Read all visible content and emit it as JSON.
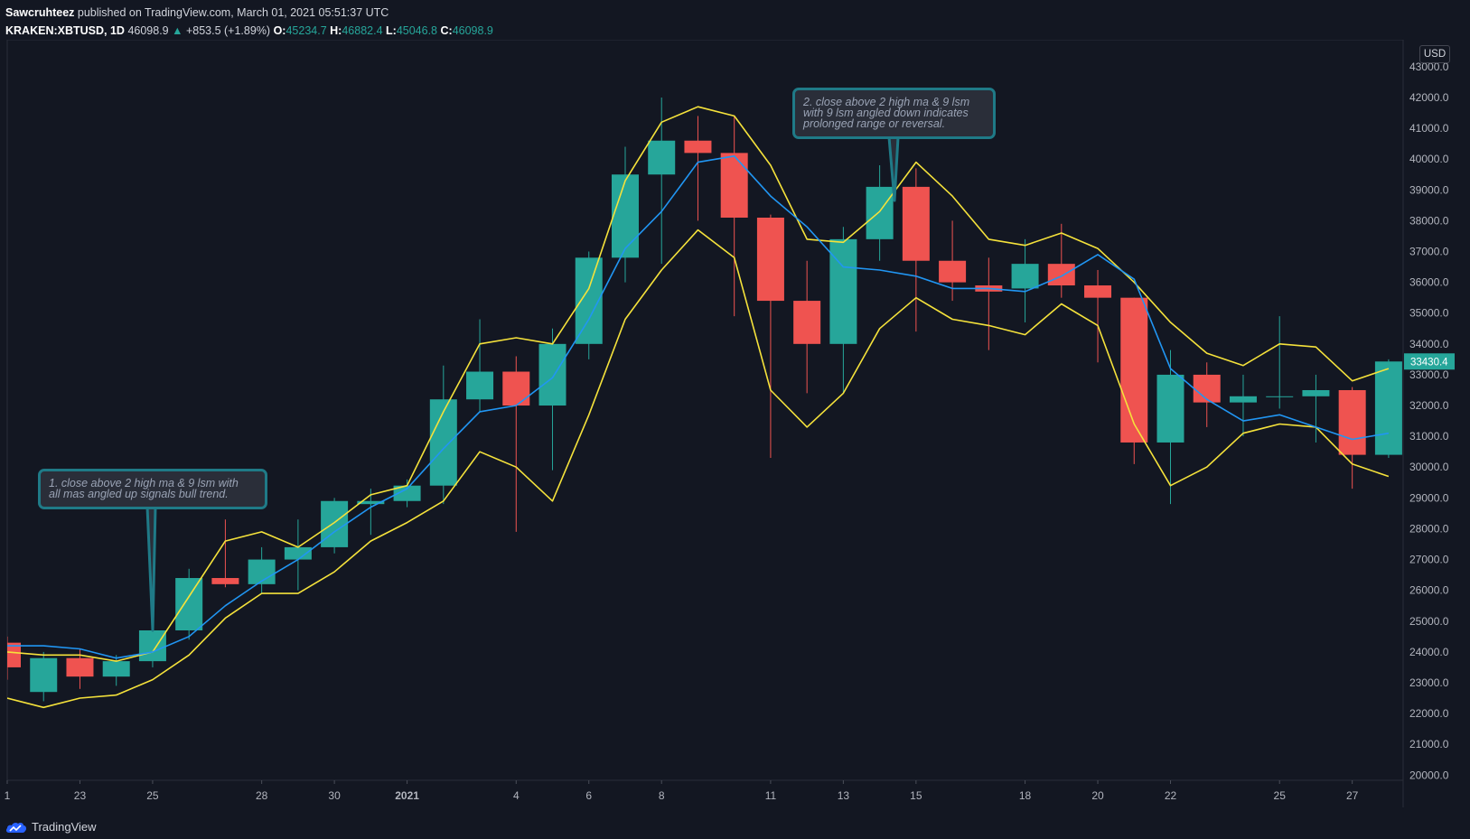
{
  "header": {
    "author": "Sawcruhteez",
    "published": " published on TradingView.com, March 01, 2021 05:51:37 UTC",
    "symbol": "KRAKEN:XBTUSD, 1D",
    "last": "46098.9",
    "change": "+853.5 (+1.89%)",
    "o_label": "O:",
    "o_value": "45234.7",
    "h_label": "H:",
    "h_value": "46882.4",
    "l_label": "L:",
    "l_value": "45046.8",
    "c_label": "C:",
    "c_value": "46098.9"
  },
  "axis": {
    "currency": "USD",
    "current_price_label": "33430.4"
  },
  "footer": {
    "brand": "TradingView",
    "logo_icon": "tradingview-cloud-icon"
  },
  "annotations": [
    {
      "text": "1. close above 2 high ma & 9 lsm with\nall mas angled up signals bull trend."
    },
    {
      "text": "2. close above 2 high ma & 9 lsm\nwith 9 lsm angled down indicates\nprolonged range or reversal."
    }
  ],
  "colors": {
    "bull": "#26a69a",
    "bear": "#ef5350",
    "ma_bands": "#f5e23b",
    "lsm": "#2196f3",
    "grid": "#1f2330"
  },
  "chart_data": {
    "type": "candlestick",
    "xlim": [
      0,
      38.4
    ],
    "ylim": [
      19950,
      43700
    ],
    "y_ticks": [
      20000,
      21000,
      22000,
      23000,
      24000,
      25000,
      26000,
      27000,
      28000,
      29000,
      30000,
      31000,
      32000,
      33000,
      34000,
      35000,
      36000,
      37000,
      38000,
      39000,
      40000,
      41000,
      42000,
      43000
    ],
    "y_tick_labels": [
      "20000.0",
      "21000.0",
      "22000.0",
      "23000.0",
      "24000.0",
      "25000.0",
      "26000.0",
      "27000.0",
      "28000.0",
      "29000.0",
      "30000.0",
      "31000.0",
      "32000.0",
      "33000.0",
      "34000.0",
      "35000.0",
      "36000.0",
      "37000.0",
      "38000.0",
      "39000.0",
      "40000.0",
      "41000.0",
      "42000.0",
      "43000.0"
    ],
    "x_ticks": [
      {
        "i": 0,
        "label": "1"
      },
      {
        "i": 2,
        "label": "23"
      },
      {
        "i": 4,
        "label": "25"
      },
      {
        "i": 7,
        "label": "28"
      },
      {
        "i": 9,
        "label": "30"
      },
      {
        "i": 11,
        "label": "2021"
      },
      {
        "i": 14,
        "label": "4"
      },
      {
        "i": 16,
        "label": "6"
      },
      {
        "i": 18,
        "label": "8"
      },
      {
        "i": 21,
        "label": "11"
      },
      {
        "i": 23,
        "label": "13"
      },
      {
        "i": 25,
        "label": "15"
      },
      {
        "i": 28,
        "label": "18"
      },
      {
        "i": 30,
        "label": "20"
      },
      {
        "i": 32,
        "label": "22"
      },
      {
        "i": 35,
        "label": "25"
      },
      {
        "i": 37,
        "label": "27"
      }
    ],
    "candles": [
      {
        "o": 24300,
        "h": 24500,
        "l": 23100,
        "c": 23500
      },
      {
        "o": 22700,
        "h": 24000,
        "l": 22400,
        "c": 23800
      },
      {
        "o": 23800,
        "h": 24100,
        "l": 22800,
        "c": 23200
      },
      {
        "o": 23200,
        "h": 23900,
        "l": 22900,
        "c": 23700
      },
      {
        "o": 23700,
        "h": 24800,
        "l": 23500,
        "c": 24700
      },
      {
        "o": 24700,
        "h": 26700,
        "l": 24400,
        "c": 26400
      },
      {
        "o": 26400,
        "h": 28300,
        "l": 26100,
        "c": 26200
      },
      {
        "o": 26200,
        "h": 27400,
        "l": 25900,
        "c": 27000
      },
      {
        "o": 27000,
        "h": 28300,
        "l": 26000,
        "c": 27400
      },
      {
        "o": 27400,
        "h": 29000,
        "l": 27200,
        "c": 28900
      },
      {
        "o": 28800,
        "h": 29300,
        "l": 27800,
        "c": 28900
      },
      {
        "o": 28900,
        "h": 29600,
        "l": 28700,
        "c": 29400
      },
      {
        "o": 29400,
        "h": 33300,
        "l": 28800,
        "c": 32200
      },
      {
        "o": 32200,
        "h": 34800,
        "l": 31800,
        "c": 33100
      },
      {
        "o": 33100,
        "h": 33600,
        "l": 27900,
        "c": 32000
      },
      {
        "o": 32000,
        "h": 34500,
        "l": 29900,
        "c": 34000
      },
      {
        "o": 34000,
        "h": 37000,
        "l": 33500,
        "c": 36800
      },
      {
        "o": 36800,
        "h": 40400,
        "l": 36000,
        "c": 39500
      },
      {
        "o": 39500,
        "h": 42000,
        "l": 36600,
        "c": 40600
      },
      {
        "o": 40600,
        "h": 41400,
        "l": 38000,
        "c": 40200
      },
      {
        "o": 40200,
        "h": 41400,
        "l": 34900,
        "c": 38100
      },
      {
        "o": 38100,
        "h": 38200,
        "l": 30300,
        "c": 35400
      },
      {
        "o": 35400,
        "h": 36700,
        "l": 32400,
        "c": 34000
      },
      {
        "o": 34000,
        "h": 37800,
        "l": 32400,
        "c": 37400
      },
      {
        "o": 37400,
        "h": 39800,
        "l": 36700,
        "c": 39100
      },
      {
        "o": 39100,
        "h": 39700,
        "l": 34400,
        "c": 36700
      },
      {
        "o": 36700,
        "h": 38000,
        "l": 35400,
        "c": 36000
      },
      {
        "o": 35900,
        "h": 36800,
        "l": 33800,
        "c": 35700
      },
      {
        "o": 35800,
        "h": 37400,
        "l": 34700,
        "c": 36600
      },
      {
        "o": 36600,
        "h": 37900,
        "l": 35500,
        "c": 35900
      },
      {
        "o": 35900,
        "h": 36400,
        "l": 33400,
        "c": 35500
      },
      {
        "o": 35500,
        "h": 35500,
        "l": 30100,
        "c": 30800
      },
      {
        "o": 30800,
        "h": 33800,
        "l": 28800,
        "c": 33000
      },
      {
        "o": 33000,
        "h": 33400,
        "l": 31300,
        "c": 32100
      },
      {
        "o": 32100,
        "h": 33000,
        "l": 31000,
        "c": 32300
      },
      {
        "o": 32300,
        "h": 34900,
        "l": 31900,
        "c": 32300
      },
      {
        "o": 32300,
        "h": 33000,
        "l": 30800,
        "c": 32500
      },
      {
        "o": 32500,
        "h": 32600,
        "l": 29300,
        "c": 30400
      },
      {
        "o": 30400,
        "h": 33500,
        "l": 30300,
        "c": 33430
      }
    ],
    "series": [
      {
        "values": [
          24000,
          23900,
          23900,
          23700,
          24000,
          25800,
          27600,
          27900,
          27400,
          28200,
          29100,
          29400,
          31800,
          34000,
          34200,
          34000,
          35800,
          39300,
          41200,
          41700,
          41400,
          39800,
          37400,
          37300,
          38300,
          39900,
          38800,
          37400,
          37200,
          37600,
          37100,
          36000,
          34700,
          33700,
          33300,
          34000,
          33900,
          32800,
          33200
        ]
      },
      {
        "values": [
          22500,
          22200,
          22500,
          22600,
          23100,
          23900,
          25100,
          25900,
          25900,
          26600,
          27600,
          28200,
          28900,
          30500,
          30000,
          28900,
          31700,
          34800,
          36400,
          37700,
          36800,
          32500,
          31300,
          32400,
          34500,
          35500,
          34800,
          34600,
          34300,
          35300,
          34600,
          31400,
          29400,
          30000,
          31100,
          31400,
          31300,
          30100,
          29700
        ]
      },
      {
        "values": [
          24200,
          24200,
          24100,
          23800,
          24000,
          24500,
          25500,
          26300,
          27000,
          27900,
          28700,
          29300,
          30600,
          31800,
          32000,
          32900,
          34800,
          37100,
          38300,
          39900,
          40100,
          38800,
          37800,
          36500,
          36400,
          36200,
          35800,
          35800,
          35700,
          36200,
          36900,
          36100,
          33200,
          32200,
          31500,
          31700,
          31300,
          30900,
          31100
        ]
      }
    ]
  }
}
